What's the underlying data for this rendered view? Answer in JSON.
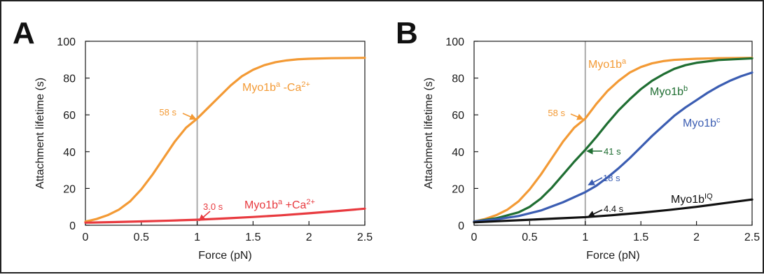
{
  "figure": {
    "border_color": "#222222"
  },
  "chart_data": [
    {
      "type": "line",
      "panel_label": "A",
      "xlabel": "Force (pN)",
      "ylabel": "Attachment lifetime (s)",
      "xlim": [
        0,
        2.5
      ],
      "ylim": [
        0,
        100
      ],
      "x_ticks": [
        "0",
        "0.5",
        "1",
        "1.5",
        "2",
        "2.5"
      ],
      "y_ticks": [
        "0",
        "20",
        "40",
        "60",
        "80",
        "100"
      ],
      "grid": false,
      "reference_line": {
        "x": 1,
        "color": "#aaaaaa"
      },
      "series": [
        {
          "label_main": "Myo1b",
          "label_sup": "a",
          "label_suffix": " -Ca",
          "label_suffix_sup": "2+",
          "color": "#f39a35",
          "points": [
            [
              0,
              2
            ],
            [
              0.1,
              3.4
            ],
            [
              0.2,
              5.5
            ],
            [
              0.3,
              8.5
            ],
            [
              0.4,
              13
            ],
            [
              0.5,
              19.5
            ],
            [
              0.6,
              27.5
            ],
            [
              0.7,
              36.5
            ],
            [
              0.8,
              45.5
            ],
            [
              0.9,
              53
            ],
            [
              1.0,
              58
            ],
            [
              1.1,
              64
            ],
            [
              1.2,
              70
            ],
            [
              1.3,
              76
            ],
            [
              1.4,
              81
            ],
            [
              1.5,
              84.5
            ],
            [
              1.6,
              87
            ],
            [
              1.7,
              88.6
            ],
            [
              1.8,
              89.6
            ],
            [
              1.9,
              90.2
            ],
            [
              2.0,
              90.5
            ],
            [
              2.2,
              90.8
            ],
            [
              2.5,
              91
            ]
          ]
        },
        {
          "label_main": "Myo1b",
          "label_sup": "a",
          "label_suffix": " +Ca",
          "label_suffix_sup": "2+",
          "color": "#e83a3f",
          "points": [
            [
              0,
              1.4
            ],
            [
              0.25,
              1.7
            ],
            [
              0.5,
              2.1
            ],
            [
              0.75,
              2.5
            ],
            [
              1.0,
              3.0
            ],
            [
              1.25,
              3.7
            ],
            [
              1.5,
              4.5
            ],
            [
              1.75,
              5.4
            ],
            [
              2.0,
              6.5
            ],
            [
              2.25,
              7.7
            ],
            [
              2.5,
              9.0
            ]
          ]
        }
      ],
      "annotations": [
        {
          "text": "58 s",
          "x": 1.0,
          "y": 58,
          "color": "#f39a35"
        },
        {
          "text": "3.0 s",
          "x": 1.0,
          "y": 3.0,
          "color": "#e83a3f"
        }
      ]
    },
    {
      "type": "line",
      "panel_label": "B",
      "xlabel": "Force (pN)",
      "ylabel": "Attachment lifetime (s)",
      "xlim": [
        0,
        2.5
      ],
      "ylim": [
        0,
        100
      ],
      "x_ticks": [
        "0",
        "0.5",
        "1",
        "1.5",
        "2",
        "2.5"
      ],
      "y_ticks": [
        "0",
        "20",
        "40",
        "60",
        "80",
        "100"
      ],
      "grid": false,
      "reference_line": {
        "x": 1,
        "color": "#aaaaaa"
      },
      "series": [
        {
          "label_main": "Myo1b",
          "label_sup": "a",
          "color": "#f39a35",
          "points": [
            [
              0,
              2
            ],
            [
              0.1,
              3.4
            ],
            [
              0.2,
              5.5
            ],
            [
              0.3,
              8.5
            ],
            [
              0.4,
              13
            ],
            [
              0.5,
              19.5
            ],
            [
              0.6,
              27.5
            ],
            [
              0.7,
              36.5
            ],
            [
              0.8,
              45.5
            ],
            [
              0.9,
              53
            ],
            [
              1.0,
              58
            ],
            [
              1.1,
              66
            ],
            [
              1.2,
              73
            ],
            [
              1.3,
              78.5
            ],
            [
              1.4,
              83
            ],
            [
              1.5,
              86
            ],
            [
              1.6,
              88
            ],
            [
              1.7,
              89.2
            ],
            [
              1.8,
              89.9
            ],
            [
              2.0,
              90.5
            ],
            [
              2.2,
              90.8
            ],
            [
              2.5,
              91
            ]
          ]
        },
        {
          "label_main": "Myo1b",
          "label_sup": "b",
          "color": "#1f6e32",
          "points": [
            [
              0,
              2
            ],
            [
              0.2,
              3.8
            ],
            [
              0.4,
              7
            ],
            [
              0.5,
              10
            ],
            [
              0.6,
              14.5
            ],
            [
              0.7,
              20.5
            ],
            [
              0.8,
              27.5
            ],
            [
              0.9,
              34.5
            ],
            [
              1.0,
              41
            ],
            [
              1.1,
              48
            ],
            [
              1.2,
              55.5
            ],
            [
              1.3,
              62.5
            ],
            [
              1.4,
              68.5
            ],
            [
              1.5,
              74
            ],
            [
              1.6,
              78.5
            ],
            [
              1.7,
              82
            ],
            [
              1.8,
              85
            ],
            [
              1.9,
              87
            ],
            [
              2.0,
              88.3
            ],
            [
              2.2,
              89.8
            ],
            [
              2.5,
              90.7
            ]
          ]
        },
        {
          "label_main": "Myo1b",
          "label_sup": "c",
          "color": "#3b5db2",
          "points": [
            [
              0,
              2
            ],
            [
              0.2,
              3.2
            ],
            [
              0.4,
              5
            ],
            [
              0.6,
              8
            ],
            [
              0.8,
              12.5
            ],
            [
              1.0,
              18
            ],
            [
              1.1,
              21.5
            ],
            [
              1.2,
              26
            ],
            [
              1.3,
              31
            ],
            [
              1.4,
              36.5
            ],
            [
              1.5,
              42.5
            ],
            [
              1.6,
              48.5
            ],
            [
              1.7,
              54
            ],
            [
              1.8,
              59.5
            ],
            [
              1.9,
              64
            ],
            [
              2.0,
              68
            ],
            [
              2.1,
              72
            ],
            [
              2.2,
              75.5
            ],
            [
              2.3,
              78.5
            ],
            [
              2.4,
              81
            ],
            [
              2.5,
              83
            ]
          ]
        },
        {
          "label_main": "Myo1b",
          "label_sup": "IQ",
          "color": "#111111",
          "points": [
            [
              0,
              1.6
            ],
            [
              0.25,
              2.3
            ],
            [
              0.5,
              3.0
            ],
            [
              0.75,
              3.7
            ],
            [
              1.0,
              4.4
            ],
            [
              1.25,
              5.5
            ],
            [
              1.5,
              6.8
            ],
            [
              1.75,
              8.3
            ],
            [
              2.0,
              10
            ],
            [
              2.25,
              12
            ],
            [
              2.5,
              14
            ]
          ]
        }
      ],
      "annotations": [
        {
          "text": "58 s",
          "x": 1.0,
          "y": 58,
          "color": "#f39a35"
        },
        {
          "text": "41 s",
          "x": 1.0,
          "y": 41,
          "color": "#1f6e32"
        },
        {
          "text": "18 s",
          "x": 1.0,
          "y": 18,
          "color": "#3b5db2"
        },
        {
          "text": "4.4 s",
          "x": 1.0,
          "y": 4.4,
          "color": "#111111"
        }
      ]
    }
  ]
}
